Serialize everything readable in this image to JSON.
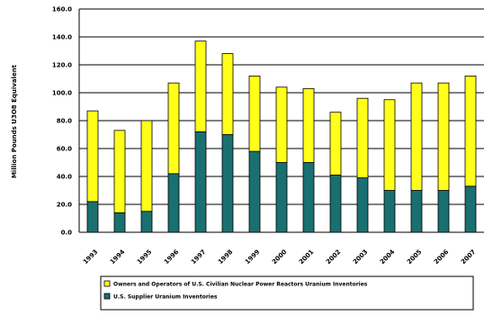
{
  "chart_data": {
    "type": "bar",
    "stacked": true,
    "title": "",
    "xlabel": "",
    "ylabel": "Million Pounds U3O8 Equivalent",
    "ylim": [
      0,
      160
    ],
    "yticks": [
      0,
      20,
      40,
      60,
      80,
      100,
      120,
      140,
      160
    ],
    "ytick_labels": [
      "0.0",
      "20.0",
      "40.0",
      "60.0",
      "80.0",
      "100.0",
      "120.0",
      "140.0",
      "160.0"
    ],
    "grid": true,
    "legend_position": "bottom",
    "categories": [
      "1993",
      "1994",
      "1995",
      "1996",
      "1997",
      "1998",
      "1999",
      "2000",
      "2001",
      "2002",
      "2003",
      "2004",
      "2005",
      "2006",
      "2007"
    ],
    "x_tick_labels": [
      "1993",
      "1994",
      "1995",
      "1996",
      "1997",
      "1998",
      "1999",
      "2000",
      "2001",
      "2002",
      "2003",
      "2004",
      "2005",
      "2006",
      "2007"
    ],
    "series": [
      {
        "name": "U.S. Supplier Uranium Inventories",
        "color": "#1a7070",
        "values": [
          22,
          14,
          15,
          42,
          72,
          70,
          58,
          50,
          50,
          41,
          39,
          30,
          30,
          30,
          33
        ]
      },
      {
        "name": "Owners and Operators of U.S. Civilian Nuclear Power Reactors Uranium Inventories",
        "color": "#ffff1a",
        "values": [
          65,
          59,
          65,
          65,
          65,
          58,
          54,
          54,
          53,
          45,
          57,
          65,
          77,
          77,
          79
        ]
      }
    ]
  }
}
